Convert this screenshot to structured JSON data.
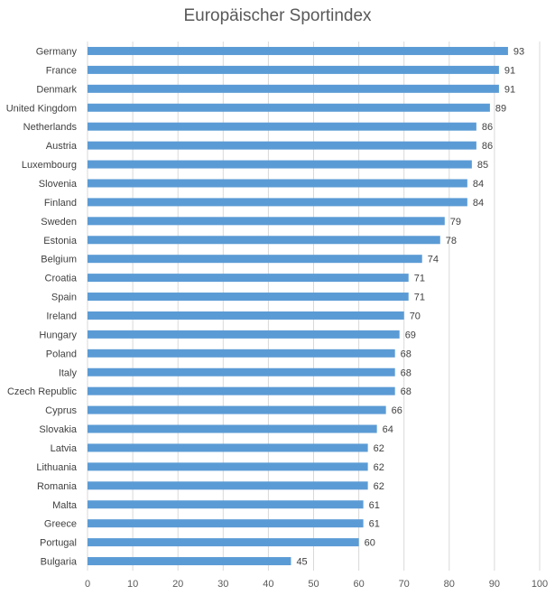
{
  "chart_data": {
    "type": "bar",
    "orientation": "horizontal",
    "title": "Europäischer Sportindex",
    "xlabel": "",
    "ylabel": "",
    "xlim": [
      0,
      100
    ],
    "ticks": [
      0,
      10,
      20,
      30,
      40,
      50,
      60,
      70,
      80,
      90,
      100
    ],
    "grid": true,
    "bar_color": "#5b9bd5",
    "categories": [
      "Germany",
      "France",
      "Denmark",
      "United Kingdom",
      "Netherlands",
      "Austria",
      "Luxembourg",
      "Slovenia",
      "Finland",
      "Sweden",
      "Estonia",
      "Belgium",
      "Croatia",
      "Spain",
      "Ireland",
      "Hungary",
      "Poland",
      "Italy",
      "Czech Republic",
      "Cyprus",
      "Slovakia",
      "Latvia",
      "Lithuania",
      "Romania",
      "Malta",
      "Greece",
      "Portugal",
      "Bulgaria"
    ],
    "values": [
      93,
      91,
      91,
      89,
      86,
      86,
      85,
      84,
      84,
      79,
      78,
      74,
      71,
      71,
      70,
      69,
      68,
      68,
      68,
      66,
      64,
      62,
      62,
      62,
      61,
      61,
      60,
      45
    ]
  }
}
